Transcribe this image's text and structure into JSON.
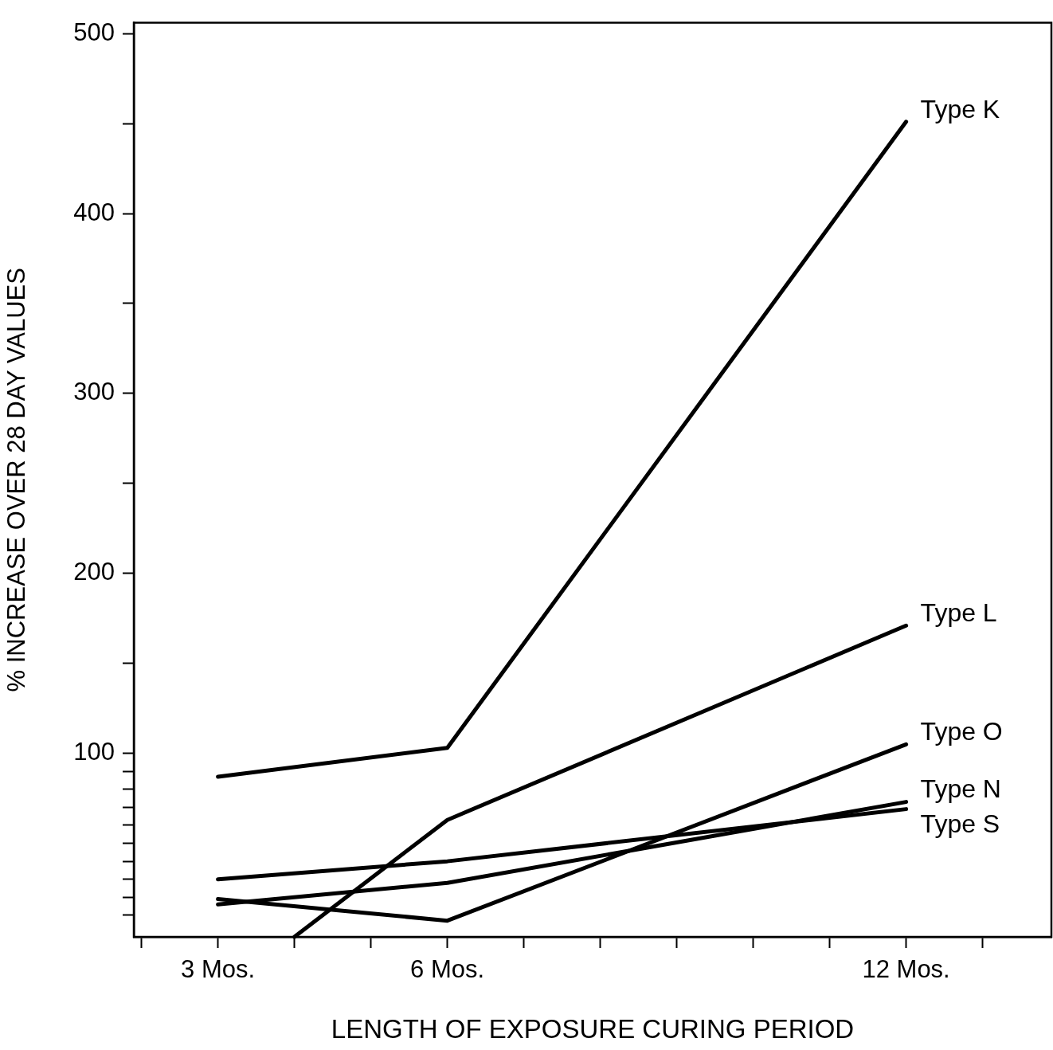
{
  "chart_data": {
    "type": "line",
    "xlabel": "LENGTH OF EXPOSURE CURING PERIOD",
    "ylabel": "% INCREASE OVER 28 DAY VALUES",
    "x": [
      3,
      6,
      12
    ],
    "xlim": [
      1.9,
      13.9
    ],
    "xticks": [
      {
        "value": 2,
        "label": null
      },
      {
        "value": 3,
        "label": "3 Mos."
      },
      {
        "value": 4,
        "label": null
      },
      {
        "value": 5,
        "label": null
      },
      {
        "value": 6,
        "label": "6 Mos."
      },
      {
        "value": 7,
        "label": null
      },
      {
        "value": 8,
        "label": null
      },
      {
        "value": 9,
        "label": null
      },
      {
        "value": 10,
        "label": null
      },
      {
        "value": 11,
        "label": null
      },
      {
        "value": 12,
        "label": "12 Mos."
      },
      {
        "value": 13,
        "label": null
      }
    ],
    "ylim": [
      -2,
      506
    ],
    "yticks": [
      {
        "value": 10,
        "label": null
      },
      {
        "value": 20,
        "label": null
      },
      {
        "value": 30,
        "label": null
      },
      {
        "value": 40,
        "label": null
      },
      {
        "value": 50,
        "label": null
      },
      {
        "value": 60,
        "label": null
      },
      {
        "value": 70,
        "label": null
      },
      {
        "value": 80,
        "label": null
      },
      {
        "value": 90,
        "label": null
      },
      100,
      {
        "value": 150,
        "label": null
      },
      200,
      {
        "value": 250,
        "label": null
      },
      300,
      {
        "value": 350,
        "label": null
      },
      400,
      {
        "value": 450,
        "label": null
      },
      500
    ],
    "grid": false,
    "legend": false,
    "marker": "none",
    "line_style": "solid",
    "series": [
      {
        "name": "Type K",
        "color": "#000000",
        "values": [
          87,
          103,
          451
        ]
      },
      {
        "name": "Type L",
        "color": "#000000",
        "x": [
          4,
          6,
          12
        ],
        "values": [
          -2,
          63,
          171
        ]
      },
      {
        "name": "Type O",
        "color": "#000000",
        "values": [
          19,
          7,
          105
        ]
      },
      {
        "name": "Type N",
        "color": "#000000",
        "values": [
          16,
          28,
          73
        ]
      },
      {
        "name": "Type S",
        "color": "#000000",
        "values": [
          30,
          40,
          69
        ]
      }
    ]
  }
}
